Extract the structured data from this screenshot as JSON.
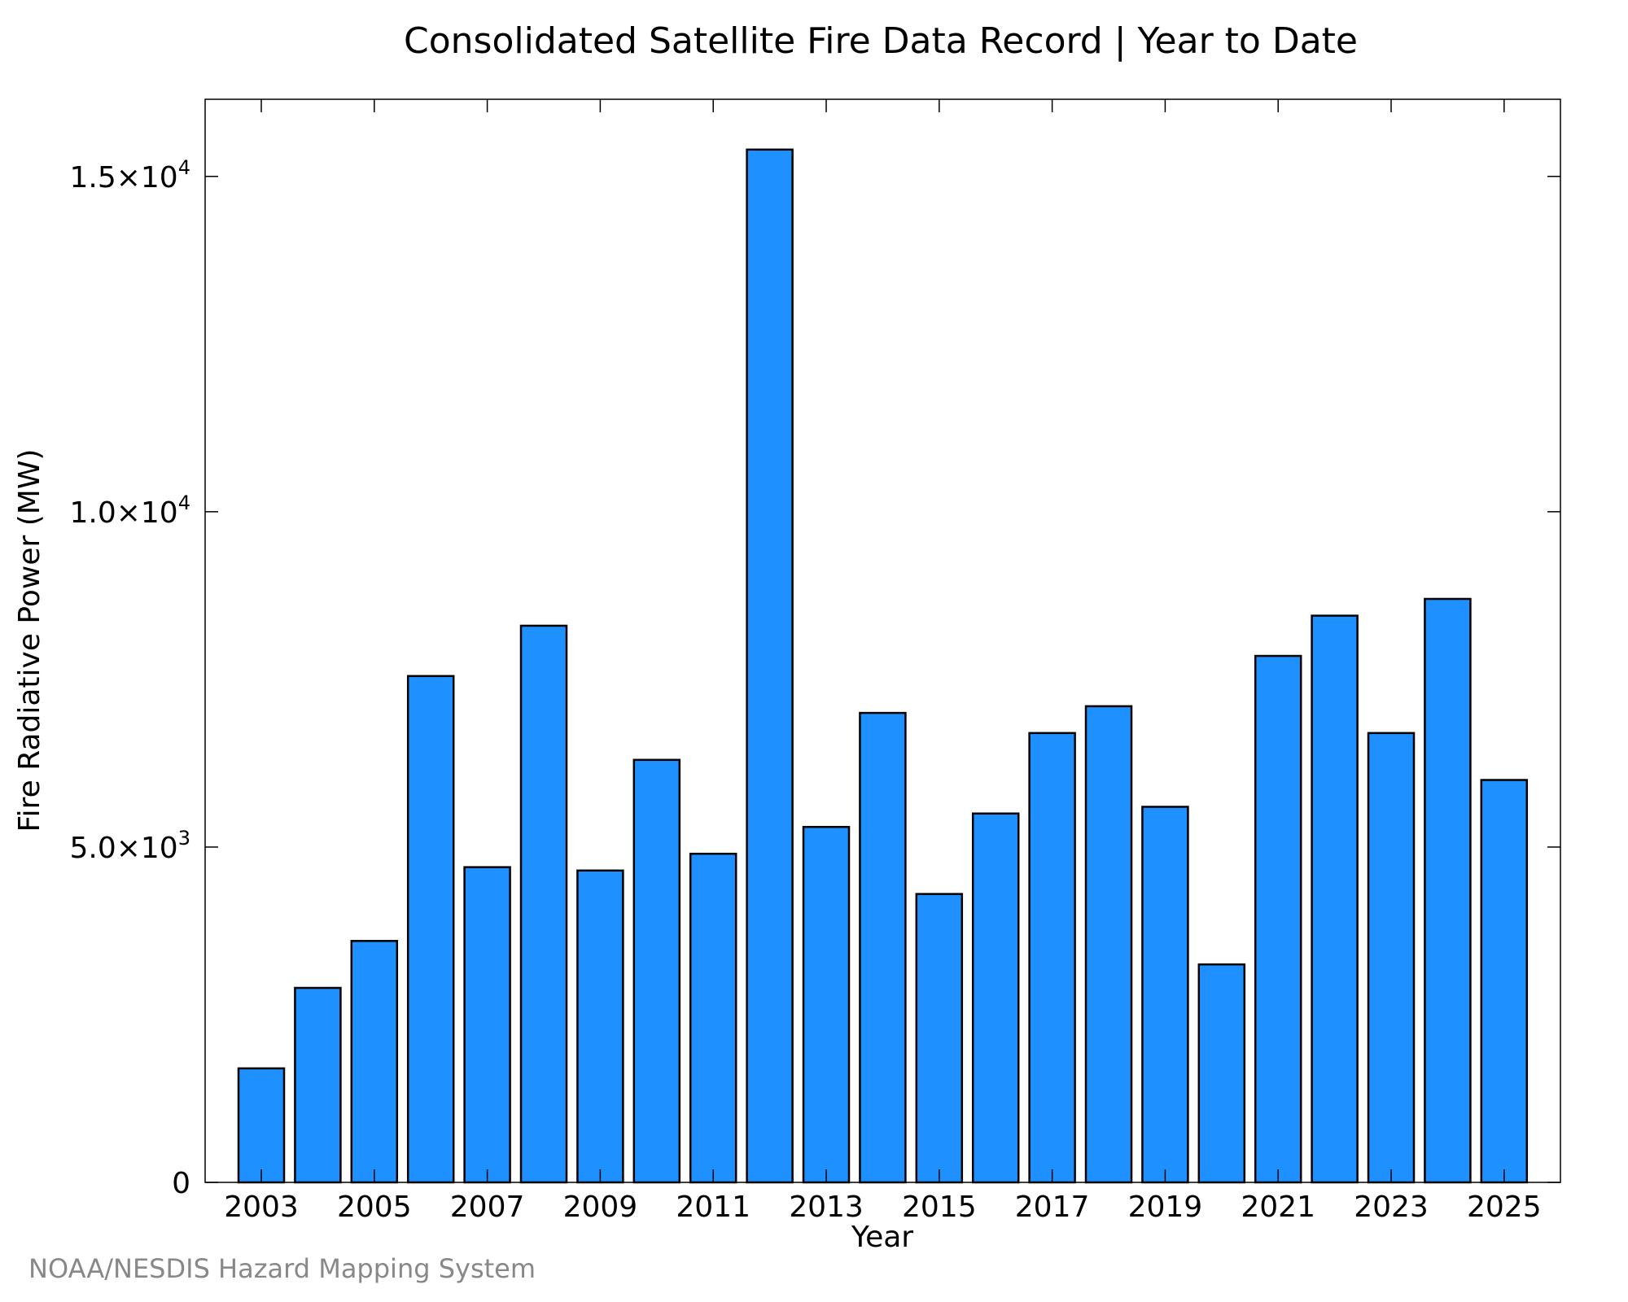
{
  "chart_data": {
    "type": "bar",
    "title": "Consolidated Satellite Fire Data Record | Year to Date",
    "xlabel": "Year",
    "ylabel": "Fire Radiative Power (MW)",
    "categories": [
      "2003",
      "2004",
      "2005",
      "2006",
      "2007",
      "2008",
      "2009",
      "2010",
      "2011",
      "2012",
      "2013",
      "2014",
      "2015",
      "2016",
      "2017",
      "2018",
      "2019",
      "2020",
      "2021",
      "2022",
      "2023",
      "2024",
      "2025"
    ],
    "values": [
      1700,
      2900,
      3600,
      7550,
      4700,
      8300,
      4650,
      6300,
      4900,
      15400,
      5300,
      7000,
      4300,
      5500,
      6700,
      7100,
      5600,
      3250,
      7850,
      8450,
      6700,
      8700,
      6000
    ],
    "x_tick_labels": [
      "2003",
      "2005",
      "2007",
      "2009",
      "2011",
      "2013",
      "2015",
      "2017",
      "2019",
      "2021",
      "2023",
      "2025"
    ],
    "y_ticks": [
      {
        "value": 0,
        "mantissa": "0",
        "exp": ""
      },
      {
        "value": 5000,
        "mantissa": "5.0×10",
        "exp": "3"
      },
      {
        "value": 10000,
        "mantissa": "1.0×10",
        "exp": "4"
      },
      {
        "value": 15000,
        "mantissa": "1.5×10",
        "exp": "4"
      }
    ],
    "ylim": [
      0,
      16150
    ],
    "grid": false,
    "bar_color": "#1e90ff",
    "bar_edge_color": "#000000"
  },
  "credit": "NOAA/NESDIS Hazard Mapping System"
}
